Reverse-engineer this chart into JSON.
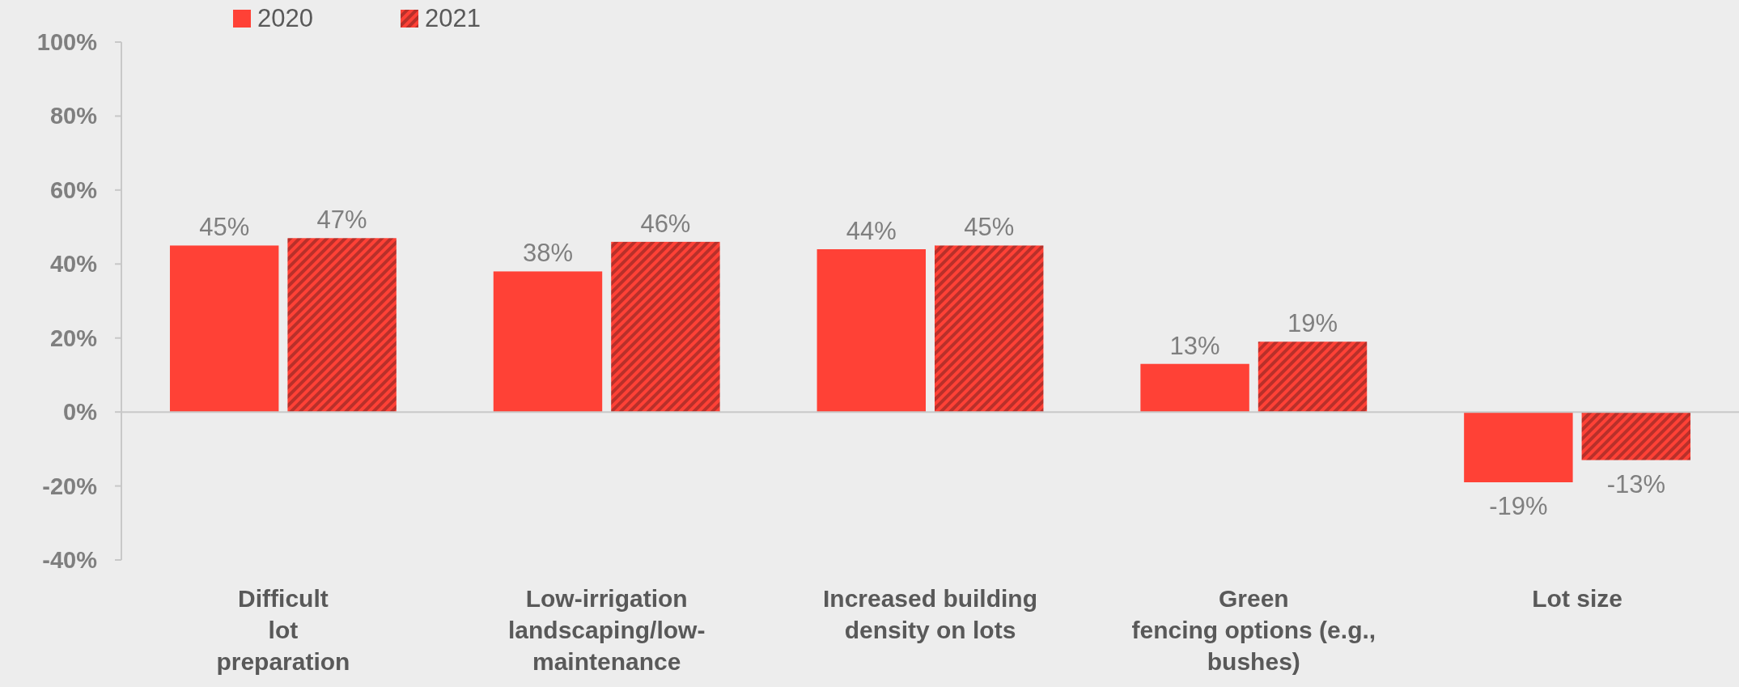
{
  "chart_data": {
    "type": "bar",
    "categories": [
      "Difficult\nlot\npreparation",
      "Low-irrigation\nlandscaping/low-\nmaintenance",
      "Increased building\ndensity on lots",
      "Green\nfencing options (e.g.,\nbushes)",
      "Lot size"
    ],
    "series": [
      {
        "name": "2020",
        "color": "#ff4136",
        "values": [
          45,
          38,
          44,
          13,
          -19
        ]
      },
      {
        "name": "2021",
        "color": "#b8302a",
        "values": [
          47,
          46,
          45,
          19,
          -13
        ]
      }
    ],
    "ylim": [
      -40,
      100
    ],
    "yticks": [
      {
        "value": -40,
        "label": "-40%"
      },
      {
        "value": -20,
        "label": "-20%"
      },
      {
        "value": 0,
        "label": "0%"
      },
      {
        "value": 20,
        "label": "20%"
      },
      {
        "value": 40,
        "label": "40%"
      },
      {
        "value": 60,
        "label": "60%"
      },
      {
        "value": 80,
        "label": "80%"
      },
      {
        "value": 100,
        "label": "100%"
      }
    ],
    "value_labels": [
      [
        "45%",
        "38%",
        "44%",
        "13%",
        "-19%"
      ],
      [
        "47%",
        "46%",
        "45%",
        "19%",
        "-13%"
      ]
    ],
    "legend": "top left"
  }
}
